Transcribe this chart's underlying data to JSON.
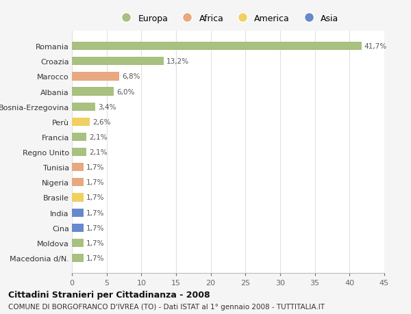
{
  "countries": [
    "Romania",
    "Croazia",
    "Marocco",
    "Albania",
    "Bosnia-Erzegovina",
    "Perù",
    "Francia",
    "Regno Unito",
    "Tunisia",
    "Nigeria",
    "Brasile",
    "India",
    "Cina",
    "Moldova",
    "Macedonia d/N."
  ],
  "values": [
    41.7,
    13.2,
    6.8,
    6.0,
    3.4,
    2.6,
    2.1,
    2.1,
    1.7,
    1.7,
    1.7,
    1.7,
    1.7,
    1.7,
    1.7
  ],
  "labels": [
    "41,7%",
    "13,2%",
    "6,8%",
    "6,0%",
    "3,4%",
    "2,6%",
    "2,1%",
    "2,1%",
    "1,7%",
    "1,7%",
    "1,7%",
    "1,7%",
    "1,7%",
    "1,7%",
    "1,7%"
  ],
  "continents": [
    "Europa",
    "Europa",
    "Africa",
    "Europa",
    "Europa",
    "America",
    "Europa",
    "Europa",
    "Africa",
    "Africa",
    "America",
    "Asia",
    "Asia",
    "Europa",
    "Europa"
  ],
  "continent_colors": {
    "Europa": "#a8c080",
    "Africa": "#e8a882",
    "America": "#f0d060",
    "Asia": "#6688cc"
  },
  "legend_order": [
    "Europa",
    "Africa",
    "America",
    "Asia"
  ],
  "title_bold": "Cittadini Stranieri per Cittadinanza - 2008",
  "subtitle": "COMUNE DI BORGOFRANCO D'IVREA (TO) - Dati ISTAT al 1° gennaio 2008 - TUTTITALIA.IT",
  "xlim": [
    0,
    45
  ],
  "xticks": [
    0,
    5,
    10,
    15,
    20,
    25,
    30,
    35,
    40,
    45
  ],
  "background_color": "#f5f5f5",
  "plot_bg_color": "#ffffff",
  "grid_color": "#e0e0e0"
}
